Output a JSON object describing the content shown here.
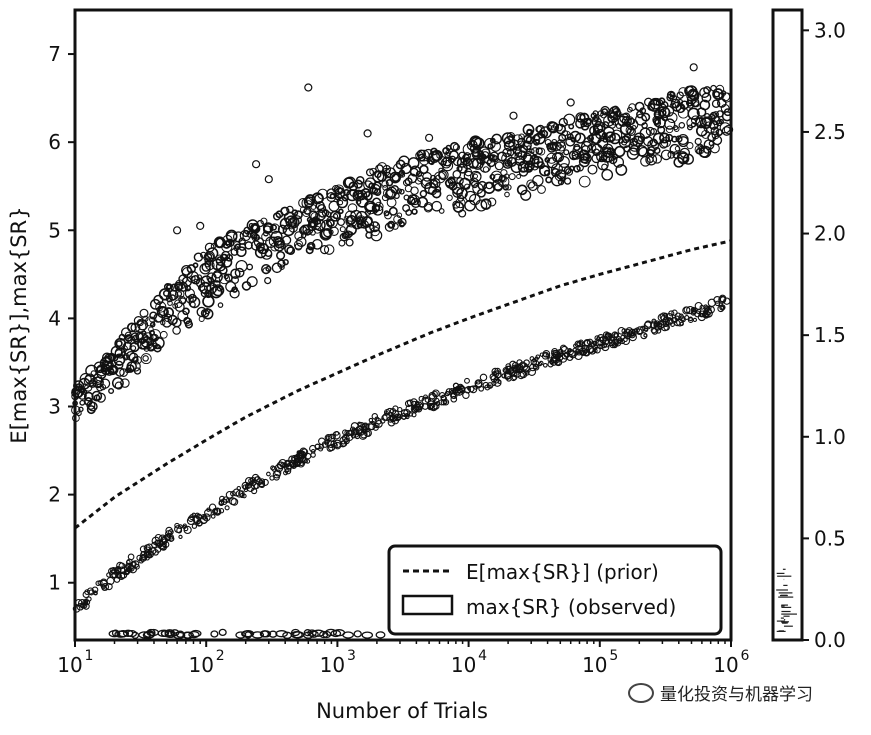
{
  "chart_data": {
    "type": "scatter",
    "title": "",
    "xlabel": "Number of Trials",
    "ylabel": "E[max{SR}],max{SR}",
    "x_scale": "log",
    "xlim": [
      10,
      1000000
    ],
    "ylim": [
      0.35,
      7.5
    ],
    "x_ticks": [
      10,
      100,
      1000,
      10000,
      100000,
      1000000
    ],
    "x_tick_labels": [
      {
        "base": "10",
        "exp": "1"
      },
      {
        "base": "10",
        "exp": "2"
      },
      {
        "base": "10",
        "exp": "3"
      },
      {
        "base": "10",
        "exp": "4"
      },
      {
        "base": "10",
        "exp": "5"
      },
      {
        "base": "10",
        "exp": "6"
      }
    ],
    "y_ticks": [
      1,
      2,
      3,
      4,
      5,
      6,
      7
    ],
    "y_tick_labels": [
      "1",
      "2",
      "3",
      "4",
      "5",
      "6",
      "7"
    ],
    "grid": false,
    "legend_position": "lower-right",
    "series": [
      {
        "name": "E[max{SR}] (prior)",
        "kind": "dashed-line",
        "x": [
          10,
          20,
          50,
          100,
          200,
          500,
          1000,
          2000,
          5000,
          10000,
          20000,
          50000,
          100000,
          200000,
          500000,
          1000000
        ],
        "y": [
          1.62,
          1.97,
          2.35,
          2.62,
          2.88,
          3.18,
          3.38,
          3.58,
          3.83,
          4.0,
          4.16,
          4.37,
          4.5,
          4.62,
          4.78,
          4.88
        ]
      },
      {
        "name": "max{SR} (observed)",
        "kind": "scatter",
        "bands": [
          {
            "label": "upper band",
            "x": [
              10,
              20,
              50,
              100,
              200,
              500,
              1000,
              2000,
              5000,
              10000,
              20000,
              50000,
              100000,
              200000,
              500000,
              1000000
            ],
            "y_low": [
              2.75,
              3.15,
              3.7,
              4.0,
              4.3,
              4.6,
              4.78,
              4.92,
              5.08,
              5.2,
              5.33,
              5.48,
              5.58,
              5.68,
              5.8,
              5.88
            ],
            "y_high": [
              3.2,
              3.7,
              4.35,
              4.8,
              5.05,
              5.3,
              5.5,
              5.7,
              5.9,
              6.0,
              6.1,
              6.25,
              6.35,
              6.45,
              6.6,
              6.65
            ]
          },
          {
            "label": "lower band",
            "x": [
              10,
              20,
              50,
              100,
              200,
              500,
              1000,
              2000,
              5000,
              10000,
              20000,
              50000,
              100000,
              200000,
              500000,
              1000000
            ],
            "y_center": [
              0.7,
              1.08,
              1.5,
              1.78,
              2.05,
              2.4,
              2.62,
              2.82,
              3.05,
              3.22,
              3.38,
              3.58,
              3.72,
              3.86,
              4.05,
              4.2
            ]
          },
          {
            "label": "floor",
            "x": [
              20,
              30,
              40,
              50,
              60,
              70,
              80,
              200,
              500,
              700,
              2000
            ],
            "y": [
              0.42,
              0.42,
              0.42,
              0.42,
              0.42,
              0.42,
              0.42,
              0.42,
              0.42,
              0.42,
              0.42
            ]
          }
        ],
        "outliers": [
          {
            "x": 600,
            "y": 6.62
          },
          {
            "x": 1700,
            "y": 6.1
          },
          {
            "x": 5000,
            "y": 6.05
          },
          {
            "x": 240,
            "y": 5.75
          },
          {
            "x": 300,
            "y": 5.58
          },
          {
            "x": 60,
            "y": 5.0
          },
          {
            "x": 90,
            "y": 5.05
          },
          {
            "x": 22000,
            "y": 6.3
          },
          {
            "x": 60000,
            "y": 6.45
          },
          {
            "x": 520000,
            "y": 6.85
          }
        ]
      }
    ],
    "colorbar": {
      "ticks": [
        "0.0",
        "0.5",
        "1.0",
        "1.5",
        "2.0",
        "2.5",
        "3.0"
      ],
      "values": [
        0.0,
        0.5,
        1.0,
        1.5,
        2.0,
        2.5,
        3.0
      ],
      "range": [
        0.0,
        3.1
      ]
    }
  },
  "legend": {
    "prior_label": "E[max{SR}] (prior)",
    "observed_label": "max{SR} (observed)"
  },
  "watermark": {
    "text": "量化投资与机器学习"
  }
}
